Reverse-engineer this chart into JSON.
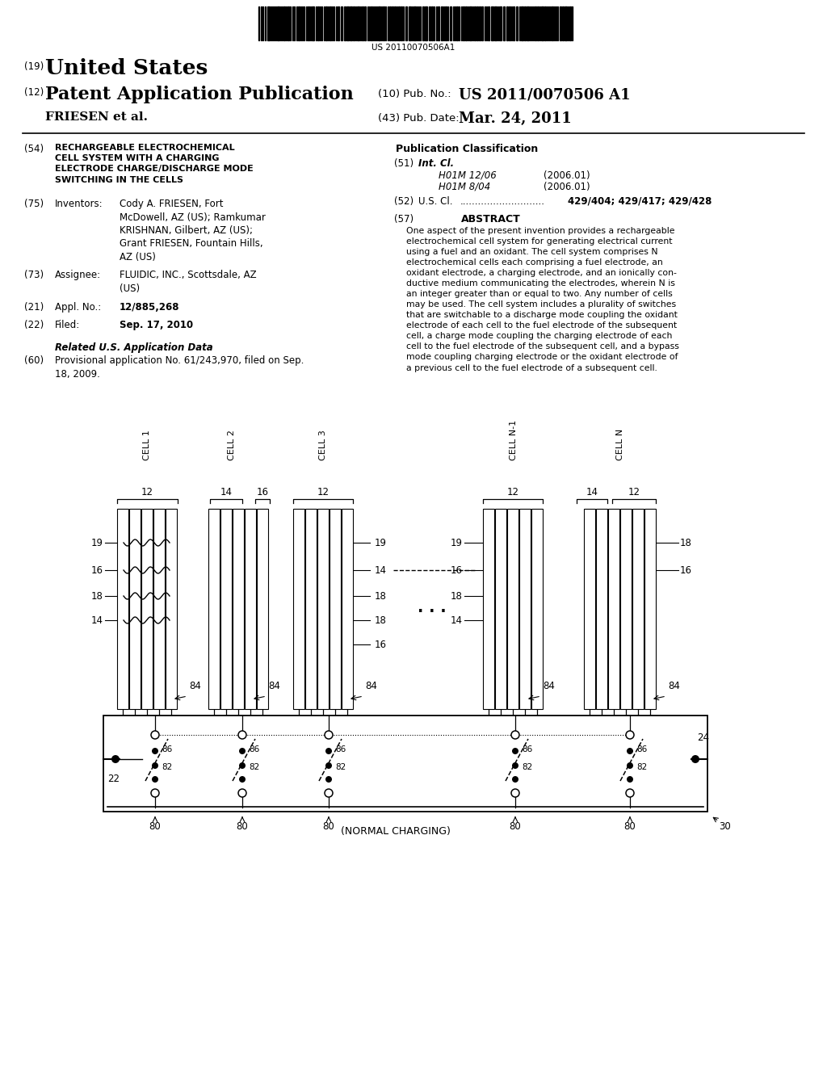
{
  "bg_color": "#ffffff",
  "barcode_text": "US 20110070506A1",
  "header": {
    "country_label": "(19)",
    "country": "United States",
    "type_label": "(12)",
    "type": "Patent Application Publication",
    "pub_no_label": "(10) Pub. No.:",
    "pub_no": "US 2011/0070506 A1",
    "inventors": "FRIESEN et al.",
    "date_label": "(43) Pub. Date:",
    "date": "Mar. 24, 2011"
  },
  "left_col": {
    "title_label": "(54)",
    "title": "RECHARGEABLE ELECTROCHEMICAL\nCELL SYSTEM WITH A CHARGING\nELECTRODE CHARGE/DISCHARGE MODE\nSWITCHING IN THE CELLS",
    "inventors_label": "(75)",
    "inventors_key": "Inventors:",
    "inventors_val": "Cody A. FRIESEN, Fort\nMcDowell, AZ (US); Ramkumar\nKRISHNAN, Gilbert, AZ (US);\nGrant FRIESEN, Fountain Hills,\nAZ (US)",
    "assignee_label": "(73)",
    "assignee_key": "Assignee:",
    "assignee_val": "FLUIDIC, INC., Scottsdale, AZ\n(US)",
    "appl_label": "(21)",
    "appl_key": "Appl. No.:",
    "appl_val": "12/885,268",
    "filed_label": "(22)",
    "filed_key": "Filed:",
    "filed_val": "Sep. 17, 2010",
    "related_title": "Related U.S. Application Data",
    "related_label": "(60)",
    "related_val": "Provisional application No. 61/243,970, filed on Sep.\n18, 2009."
  },
  "right_col": {
    "pub_class_title": "Publication Classification",
    "intcl_label": "(51)",
    "intcl_key": "Int. Cl.",
    "intcl_val1": "H01M 12/06",
    "intcl_year1": "(2006.01)",
    "intcl_val2": "H01M 8/04",
    "intcl_year2": "(2006.01)",
    "uscl_label": "(52)",
    "uscl_key": "U.S. Cl.",
    "uscl_dots": "............................",
    "uscl_val": "429/404; 429/417; 429/428",
    "abstract_label": "(57)",
    "abstract_title": "ABSTRACT",
    "abstract_text": "One aspect of the present invention provides a rechargeable\nelectrochemical cell system for generating electrical current\nusing a fuel and an oxidant. The cell system comprises N\nelectrochemical cells each comprising a fuel electrode, an\noxidant electrode, a charging electrode, and an ionically con-\nductive medium communicating the electrodes, wherein N is\nan integer greater than or equal to two. Any number of cells\nmay be used. The cell system includes a plurality of switches\nthat are switchable to a discharge mode coupling the oxidant\nelectrode of each cell to the fuel electrode of the subsequent\ncell, a charge mode coupling the charging electrode of each\ncell to the fuel electrode of the subsequent cell, and a bypass\nmode coupling charging electrode or the oxidant electrode of\na previous cell to the fuel electrode of a subsequent cell."
  }
}
